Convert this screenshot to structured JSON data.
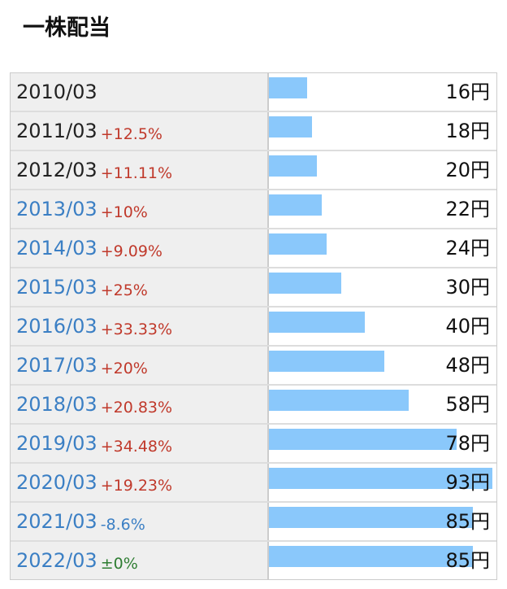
{
  "title": "一株配当",
  "chart_data": {
    "type": "bar",
    "categories": [
      "2010/03",
      "2011/03",
      "2012/03",
      "2013/03",
      "2014/03",
      "2015/03",
      "2016/03",
      "2017/03",
      "2018/03",
      "2019/03",
      "2020/03",
      "2021/03",
      "2022/03"
    ],
    "category_colors": [
      "#222222",
      "#222222",
      "#222222",
      "#3b7fc4",
      "#3b7fc4",
      "#3b7fc4",
      "#3b7fc4",
      "#3b7fc4",
      "#3b7fc4",
      "#3b7fc4",
      "#3b7fc4",
      "#3b7fc4",
      "#3b7fc4"
    ],
    "changes": [
      null,
      "+12.5%",
      "+11.11%",
      "+10%",
      "+9.09%",
      "+25%",
      "+33.33%",
      "+20%",
      "+20.83%",
      "+34.48%",
      "+19.23%",
      "-8.6%",
      "±0%"
    ],
    "change_colors": [
      null,
      "#c0392b",
      "#c0392b",
      "#c0392b",
      "#c0392b",
      "#c0392b",
      "#c0392b",
      "#c0392b",
      "#c0392b",
      "#c0392b",
      "#c0392b",
      "#3b7fc4",
      "#2e7d32"
    ],
    "values": [
      16,
      18,
      20,
      22,
      24,
      30,
      40,
      48,
      58,
      78,
      93,
      85,
      85
    ],
    "value_labels": [
      "16円",
      "18円",
      "20円",
      "22円",
      "24円",
      "30円",
      "40円",
      "48円",
      "58円",
      "78円",
      "93円",
      "85円",
      "85円"
    ],
    "color": "#8ac8fb"
  }
}
